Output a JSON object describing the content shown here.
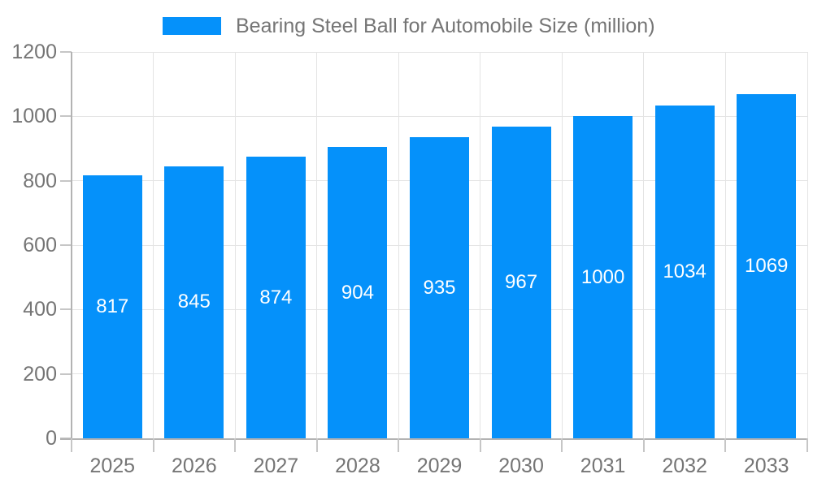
{
  "chart_data": {
    "type": "bar",
    "title": "Bearing Steel Ball for Automobile Size (million)",
    "legend": {
      "label": "Bearing Steel Ball for Automobile Size (million)",
      "position": "top"
    },
    "categories": [
      "2025",
      "2026",
      "2027",
      "2028",
      "2029",
      "2030",
      "2031",
      "2032",
      "2033"
    ],
    "series": [
      {
        "name": "Bearing Steel Ball for Automobile Size (million)",
        "values": [
          817,
          845,
          874,
          904,
          935,
          967,
          1000,
          1034,
          1069
        ]
      }
    ],
    "data_labels": [
      "817",
      "845",
      "874",
      "904",
      "935",
      "967",
      "1000",
      "1034",
      "1069"
    ],
    "xlabel": "",
    "ylabel": "",
    "ylim": [
      0,
      1200
    ],
    "yticks": [
      0,
      200,
      400,
      600,
      800,
      1000,
      1200
    ],
    "grid": true,
    "colors": {
      "bar": "#0591FA",
      "bar_label_text": "#FFFFFF",
      "axis_text": "#757575",
      "gridline": "#E4E4E4",
      "tick": "#C6C6C6",
      "axis_line": "#B3B3B3",
      "background": "#FFFFFF"
    }
  }
}
